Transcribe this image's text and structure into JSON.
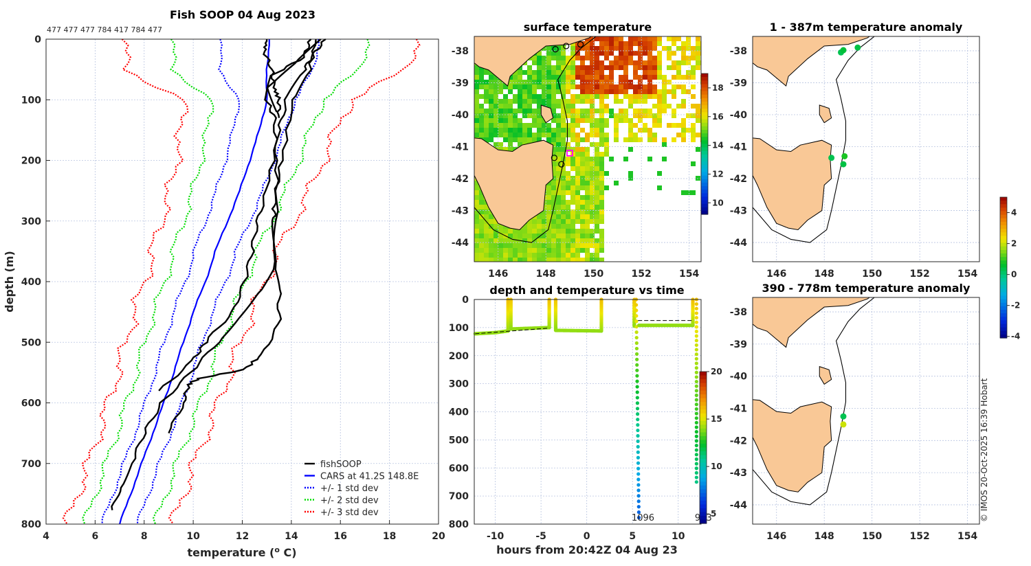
{
  "stamp": "© IMOS 20-Oct-2025 16:39 Hobart",
  "chart_data": [
    {
      "type": "line",
      "title": "Fish SOOP 04 Aug 2023",
      "subtitle": "477 477 477 784 417 784 477",
      "xlabel": "temperature (",
      "xlabel_sup": "o",
      "xlabel_end": " C)",
      "ylabel": "depth (m)",
      "xlim": [
        4,
        20
      ],
      "ylim": [
        0,
        800
      ],
      "xticks": [
        4,
        6,
        8,
        10,
        12,
        14,
        16,
        18,
        20
      ],
      "yticks": [
        0,
        100,
        200,
        300,
        400,
        500,
        600,
        700,
        800
      ],
      "grid": true,
      "legend_placement": "bottom-right",
      "legend": [
        "fishSOOP",
        "CARS at 41.2S 148.8E",
        "+/- 1 std dev",
        "+/- 2 std dev",
        "+/- 3 std dev"
      ],
      "colors": {
        "fishSOOP": "#000000",
        "cars": "#0000ff",
        "std1": "#0000ff",
        "std2": "#00dd00",
        "std3": "#ff0000"
      },
      "cars": {
        "depth": [
          0,
          50,
          100,
          150,
          200,
          250,
          300,
          350,
          400,
          450,
          500,
          550,
          600,
          650,
          700,
          750,
          800
        ],
        "mean": [
          13.1,
          13.0,
          13.0,
          12.7,
          12.3,
          11.9,
          11.4,
          10.9,
          10.5,
          10.0,
          9.6,
          9.2,
          8.8,
          8.35,
          7.9,
          7.45,
          7.0
        ],
        "std": [
          2.0,
          1.9,
          1.15,
          1.05,
          1.0,
          0.95,
          0.9,
          0.85,
          0.82,
          0.8,
          0.78,
          0.76,
          0.75,
          0.73,
          0.72,
          0.72,
          0.72
        ]
      },
      "series": [
        {
          "name": "fishSOOP 1",
          "depth": [
            0,
            30,
            60,
            100,
            130,
            200,
            300,
            380,
            420,
            460,
            500,
            550,
            600,
            650,
            700,
            740,
            777
          ],
          "temp": [
            14.8,
            14.5,
            13.2,
            13.0,
            13.3,
            13.4,
            13.4,
            13.3,
            12.6,
            11.8,
            11.0,
            9.9,
            8.7,
            8.0,
            7.5,
            7.0,
            6.7
          ]
        },
        {
          "name": "fishSOOP 2",
          "depth": [
            0,
            30,
            60,
            100,
            150,
            250,
            300,
            350,
            400,
            450,
            500,
            530,
            580
          ],
          "temp": [
            15.4,
            14.8,
            14.4,
            13.8,
            13.5,
            13.0,
            12.6,
            12.4,
            12.1,
            11.6,
            10.5,
            10.0,
            8.6
          ]
        },
        {
          "name": "fishSOOP 3",
          "depth": [
            0,
            60,
            100,
            200,
            270,
            300,
            380,
            420,
            470,
            520,
            545,
            560,
            570,
            600,
            650
          ],
          "temp": [
            15.0,
            14.7,
            14.1,
            13.6,
            13.3,
            13.3,
            13.3,
            13.5,
            13.5,
            12.8,
            12.1,
            10.2,
            9.8,
            9.6,
            9.0
          ]
        },
        {
          "name": "fishSOOP 4",
          "depth": [
            0,
            20,
            50,
            80,
            100,
            130
          ],
          "temp": [
            13.0,
            12.9,
            13.2,
            13.3,
            13.5,
            13.5
          ]
        },
        {
          "name": "fishSOOP 5",
          "depth": [
            0,
            40,
            80,
            120
          ],
          "temp": [
            15.2,
            14.2,
            13.1,
            13.4
          ]
        }
      ]
    },
    {
      "type": "heatmap",
      "title": "surface temperature",
      "xlim": [
        145,
        154.5
      ],
      "ylim": [
        -44.6,
        -37.55
      ],
      "xticks": [
        146,
        148,
        150,
        152,
        154
      ],
      "yticks": [
        -38,
        -39,
        -40,
        -41,
        -42,
        -43,
        -44
      ],
      "colorbar": {
        "range": [
          9.2,
          19
        ],
        "ticks": [
          10,
          12,
          14,
          16,
          18
        ]
      },
      "markers": [
        {
          "lon": 148.35,
          "lat": -41.35
        },
        {
          "lon": 148.65,
          "lat": -41.55
        },
        {
          "lon": 148.4,
          "lat": -37.95
        },
        {
          "lon": 148.85,
          "lat": -37.85
        },
        {
          "lon": 149.45,
          "lat": -37.8
        }
      ],
      "current_position": {
        "lon": 149.0,
        "lat": -41.2
      }
    },
    {
      "type": "scatter",
      "title": "depth and temperature vs time",
      "xlabel": "hours from 20:42Z 04 Aug 23",
      "xlim": [
        -12.3,
        12.5
      ],
      "ylim": [
        0,
        800
      ],
      "xticks": [
        -10,
        -5,
        0,
        5,
        10
      ],
      "yticks": [
        0,
        100,
        200,
        300,
        400,
        500,
        600,
        700,
        800
      ],
      "colorbar": {
        "range": [
          4,
          20
        ],
        "ticks": [
          5,
          10,
          15,
          20
        ]
      },
      "annotations": [
        {
          "text": "1096",
          "hour": 5.7,
          "depth": 800
        },
        {
          "text": "943",
          "hour": 12.0,
          "depth": 800
        }
      ],
      "tracks": [
        {
          "hours": [
            -12.2,
            -10,
            -8.6
          ],
          "depth": [
            122,
            118,
            112
          ],
          "temp": [
            14,
            14,
            14
          ]
        },
        {
          "hours": [
            -8.6,
            -8.6
          ],
          "depth": [
            112,
            0
          ],
          "temp": [
            14,
            16
          ]
        },
        {
          "hours": [
            -8.3,
            -8.3
          ],
          "depth": [
            0,
            105
          ],
          "temp": [
            16,
            14
          ]
        },
        {
          "hours": [
            -8.3,
            -4.1
          ],
          "depth": [
            105,
            100
          ],
          "temp": [
            14,
            14
          ]
        },
        {
          "hours": [
            -4.1,
            -4.1
          ],
          "depth": [
            100,
            0
          ],
          "temp": [
            14,
            16
          ]
        },
        {
          "hours": [
            -3.4,
            -3.4
          ],
          "depth": [
            0,
            105
          ],
          "temp": [
            16,
            14
          ]
        },
        {
          "hours": [
            -3.4,
            1.6
          ],
          "depth": [
            110,
            112
          ],
          "temp": [
            14,
            14
          ]
        },
        {
          "hours": [
            1.6,
            1.6
          ],
          "depth": [
            112,
            0
          ],
          "temp": [
            14,
            16
          ]
        },
        {
          "hours": [
            5.2,
            5.2
          ],
          "depth": [
            0,
            95
          ],
          "temp": [
            16,
            14
          ]
        },
        {
          "hours": [
            5.4,
            5.7
          ],
          "depth": [
            0,
            777
          ],
          "temp": [
            16,
            7
          ]
        },
        {
          "hours": [
            5.7,
            11.6
          ],
          "depth": [
            92,
            92
          ],
          "temp": [
            14,
            14
          ]
        },
        {
          "hours": [
            11.6,
            11.6
          ],
          "depth": [
            92,
            0
          ],
          "temp": [
            14,
            16
          ]
        },
        {
          "hours": [
            12.0,
            12.0
          ],
          "depth": [
            0,
            650
          ],
          "temp": [
            16,
            11
          ]
        }
      ],
      "dashed": [
        {
          "hours": [
            -12.2,
            -4.1
          ],
          "depth": [
            122,
            102
          ]
        },
        {
          "hours": [
            5.6,
            11.5
          ],
          "depth": [
            75,
            75
          ]
        }
      ]
    },
    {
      "type": "scatter",
      "title": "1 - 387m temperature anomaly",
      "xlim": [
        145,
        154.5
      ],
      "ylim": [
        -44.6,
        -37.55
      ],
      "xticks": [
        146,
        148,
        150,
        152,
        154
      ],
      "yticks": [
        -38,
        -39,
        -40,
        -41,
        -42,
        -43,
        -44
      ],
      "points": [
        {
          "lon": 148.7,
          "lat": -38.05,
          "anom": 0.3
        },
        {
          "lon": 148.8,
          "lat": -37.98,
          "anom": 0.5
        },
        {
          "lon": 149.4,
          "lat": -37.9,
          "anom": 0.4
        },
        {
          "lon": 148.3,
          "lat": -41.35,
          "anom": 0.3
        },
        {
          "lon": 148.85,
          "lat": -41.3,
          "anom": 0.8
        },
        {
          "lon": 148.8,
          "lat": -41.55,
          "anom": 0.4
        }
      ]
    },
    {
      "type": "scatter",
      "title": "390 - 778m temperature anomaly",
      "xlim": [
        145,
        154.5
      ],
      "ylim": [
        -44.6,
        -37.55
      ],
      "xticks": [
        146,
        148,
        150,
        152,
        154
      ],
      "yticks": [
        -38,
        -39,
        -40,
        -41,
        -42,
        -43,
        -44
      ],
      "colorbar": {
        "range": [
          -4.1,
          5.0
        ],
        "ticks": [
          4,
          2,
          0,
          -2,
          -4
        ]
      },
      "points": [
        {
          "lon": 148.8,
          "lat": -41.25,
          "anom": 0.3
        },
        {
          "lon": 148.8,
          "lat": -41.5,
          "anom": 2.0
        }
      ]
    }
  ],
  "colors": {
    "land": "#f9c896",
    "grid": "#b8c4e0"
  }
}
